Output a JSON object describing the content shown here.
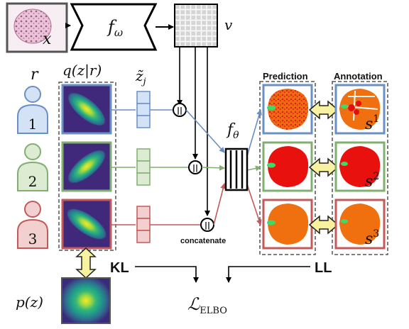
{
  "input": {
    "symbol": "x"
  },
  "encoder": {
    "label": "f",
    "subscript": "ω"
  },
  "feature_map": {
    "symbol": "v"
  },
  "annotators": {
    "variable": "r",
    "ids": [
      "1",
      "2",
      "3"
    ],
    "colors": [
      "#6a8fc7",
      "#7fb070",
      "#c25a5a"
    ],
    "fills": [
      "#d3e2f4",
      "#dcebd2",
      "#f2d0cf"
    ]
  },
  "posterior": {
    "label": "q(z|r)"
  },
  "samples": {
    "label": "z̃",
    "subscript": "j"
  },
  "concat": {
    "symbol": "||",
    "label": "concatenate"
  },
  "decoder": {
    "label": "f",
    "subscript": "θ"
  },
  "columns": {
    "prediction": "Prediction",
    "annotation": "Annotation"
  },
  "segmentations": {
    "labels": [
      "s",
      "s",
      "s"
    ],
    "superscripts": [
      "1",
      "2",
      "3"
    ]
  },
  "prior": {
    "label": "p(z)"
  },
  "losses": {
    "kl": "KL",
    "ll": "LL",
    "elbo": "ℒ",
    "elbo_sub": "ELBO"
  }
}
